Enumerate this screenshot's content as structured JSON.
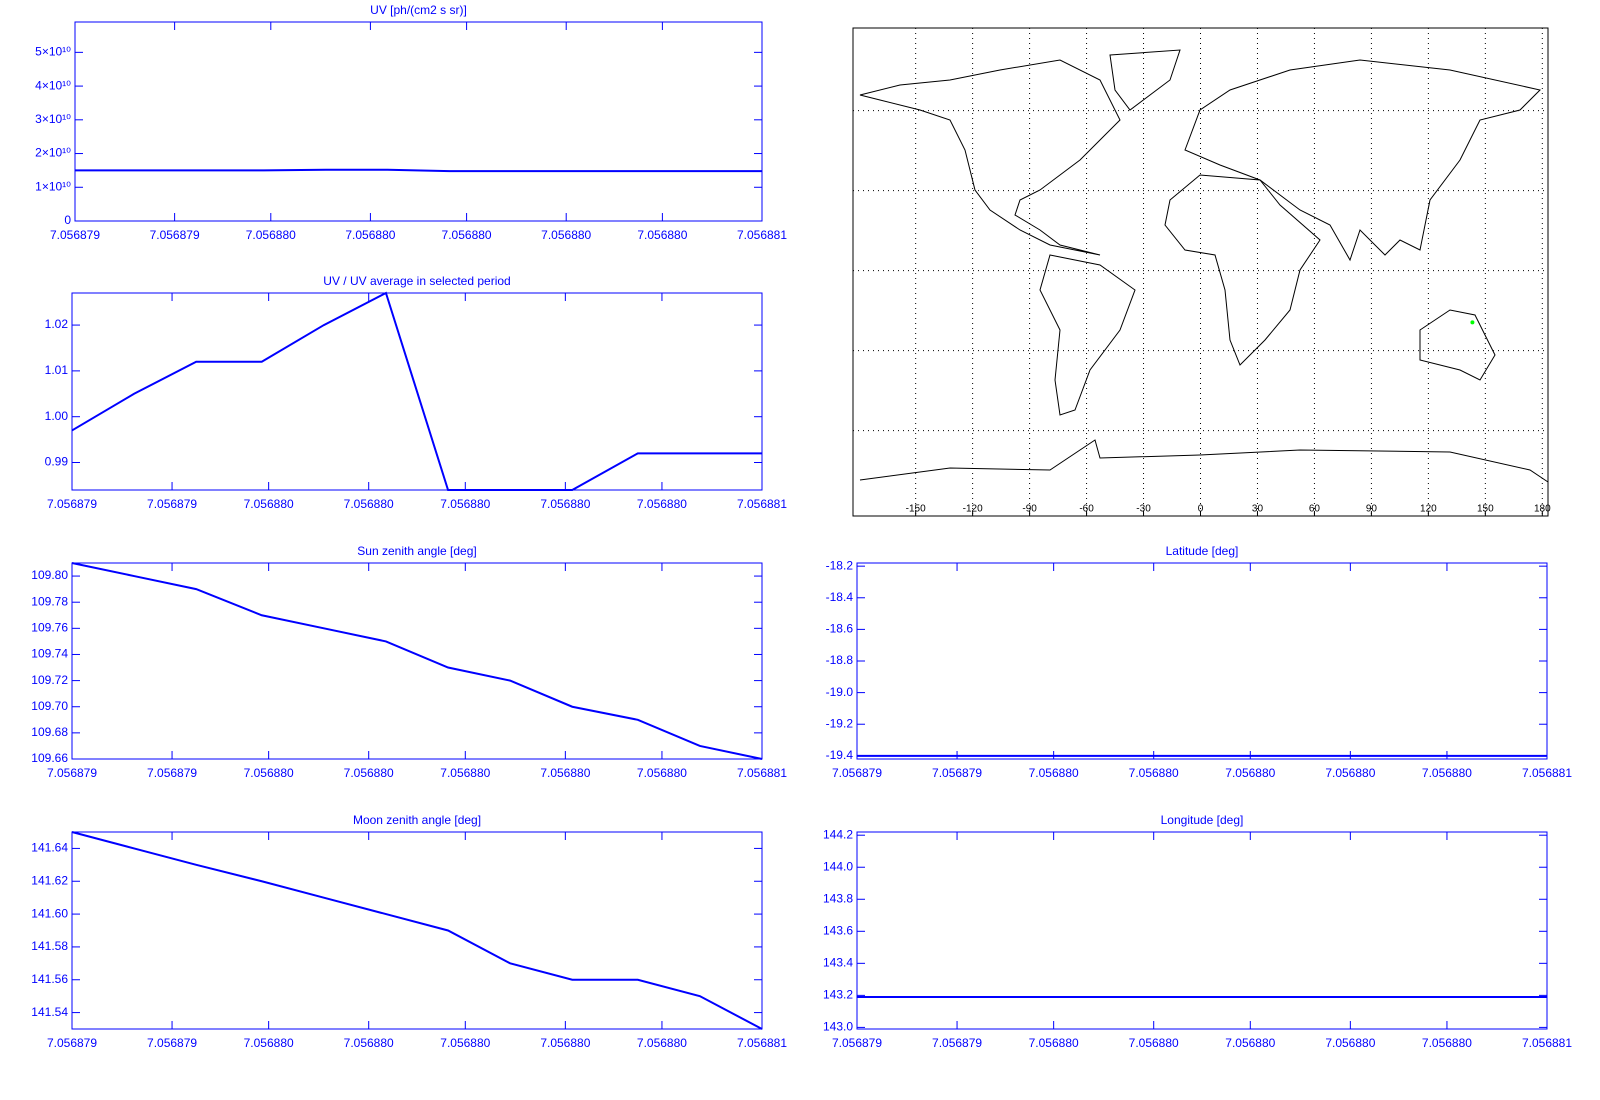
{
  "chart_data": [
    {
      "type": "line",
      "title": "UV [ph/(cm2 s sr)]",
      "color": "#0000ff",
      "x": [
        7.056879,
        7.05687918,
        7.05687936,
        7.05687955,
        7.05687973,
        7.05687991,
        7.05688009,
        7.05688027,
        7.05688045,
        7.05688064,
        7.05688082,
        7.056881
      ],
      "values": [
        15000000000,
        15000000000,
        15000000000,
        15000000000,
        15200000000,
        15200000000,
        14800000000,
        14800000000,
        14800000000,
        14800000000,
        14800000000,
        14800000000
      ],
      "xlim": [
        7.056879,
        7.056881
      ],
      "xticks": [
        {
          "value": 7.056879,
          "label": "7.056879"
        },
        {
          "value": 7.05687929,
          "label": "7.056879"
        },
        {
          "value": 7.05687957,
          "label": "7.056880"
        },
        {
          "value": 7.05687986,
          "label": "7.056880"
        },
        {
          "value": 7.05688014,
          "label": "7.056880"
        },
        {
          "value": 7.05688043,
          "label": "7.056880"
        },
        {
          "value": 7.05688071,
          "label": "7.056880"
        },
        {
          "value": 7.056881,
          "label": "7.056881"
        }
      ],
      "ylim": [
        0,
        59000000000
      ],
      "yticks": [
        0,
        {
          "value": 10000000000,
          "label": "1×10¹⁰"
        },
        {
          "value": 20000000000,
          "label": "2×10¹⁰"
        },
        {
          "value": 30000000000,
          "label": "3×10¹⁰"
        },
        {
          "value": 40000000000,
          "label": "4×10¹⁰"
        },
        {
          "value": 50000000000,
          "label": "5×10¹⁰"
        }
      ]
    },
    {
      "type": "line",
      "title": "UV / UV average in selected period",
      "color": "#0000ff",
      "x": [
        7.056879,
        7.05687918,
        7.05687936,
        7.05687955,
        7.05687973,
        7.05687991,
        7.05688009,
        7.05688027,
        7.05688045,
        7.05688064,
        7.05688082,
        7.056881
      ],
      "values": [
        0.997,
        1.005,
        1.012,
        1.012,
        1.02,
        1.027,
        0.984,
        0.984,
        0.984,
        0.992,
        0.992,
        0.992
      ],
      "xlim": [
        7.056879,
        7.056881
      ],
      "xticks": [
        {
          "value": 7.056879,
          "label": "7.056879"
        },
        {
          "value": 7.05687929,
          "label": "7.056879"
        },
        {
          "value": 7.05687957,
          "label": "7.056880"
        },
        {
          "value": 7.05687986,
          "label": "7.056880"
        },
        {
          "value": 7.05688014,
          "label": "7.056880"
        },
        {
          "value": 7.05688043,
          "label": "7.056880"
        },
        {
          "value": 7.05688071,
          "label": "7.056880"
        },
        {
          "value": 7.056881,
          "label": "7.056881"
        }
      ],
      "ylim": [
        0.984,
        1.027
      ],
      "yticks": [
        0.99,
        {
          "value": 1,
          "label": "1.00"
        },
        1.01,
        1.02
      ]
    },
    {
      "type": "map",
      "color": "#00ff00",
      "grid": true,
      "xlim": [
        -183,
        183
      ],
      "ylim": [
        -92,
        91
      ],
      "xticks": [
        -150,
        -120,
        -90,
        -60,
        -30,
        0,
        30,
        60,
        90,
        120,
        150,
        180
      ],
      "ygrid": [
        -60,
        -30,
        0,
        30,
        60
      ],
      "points": [
        {
          "x": 143.19,
          "y": -19.4
        }
      ]
    },
    {
      "type": "line",
      "title": "Sun zenith angle [deg]",
      "color": "#0000ff",
      "x": [
        7.056879,
        7.05687918,
        7.05687936,
        7.05687955,
        7.05687973,
        7.05687991,
        7.05688009,
        7.05688027,
        7.05688045,
        7.05688064,
        7.05688082,
        7.056881
      ],
      "values": [
        109.81,
        109.8,
        109.79,
        109.77,
        109.76,
        109.75,
        109.73,
        109.72,
        109.7,
        109.69,
        109.67,
        109.66
      ],
      "xlim": [
        7.056879,
        7.056881
      ],
      "xticks": [
        {
          "value": 7.056879,
          "label": "7.056879"
        },
        {
          "value": 7.05687929,
          "label": "7.056879"
        },
        {
          "value": 7.05687957,
          "label": "7.056880"
        },
        {
          "value": 7.05687986,
          "label": "7.056880"
        },
        {
          "value": 7.05688014,
          "label": "7.056880"
        },
        {
          "value": 7.05688043,
          "label": "7.056880"
        },
        {
          "value": 7.05688071,
          "label": "7.056880"
        },
        {
          "value": 7.056881,
          "label": "7.056881"
        }
      ],
      "ylim": [
        109.66,
        109.81
      ],
      "yticks": [
        109.66,
        109.68,
        {
          "value": 109.7,
          "label": "109.70"
        },
        109.72,
        109.74,
        109.76,
        109.78,
        {
          "value": 109.8,
          "label": "109.80"
        }
      ]
    },
    {
      "type": "line",
      "title": "Latitude [deg]",
      "color": "#0000ff",
      "x": [
        7.056879,
        7.05687918,
        7.05687936,
        7.05687955,
        7.05687973,
        7.05687991,
        7.05688009,
        7.05688027,
        7.05688045,
        7.05688064,
        7.05688082,
        7.056881
      ],
      "values": [
        -19.4,
        -19.4,
        -19.4,
        -19.4,
        -19.4,
        -19.4,
        -19.4,
        -19.4,
        -19.4,
        -19.4,
        -19.4,
        -19.4
      ],
      "xlim": [
        7.056879,
        7.056881
      ],
      "xticks": [
        {
          "value": 7.056879,
          "label": "7.056879"
        },
        {
          "value": 7.05687929,
          "label": "7.056879"
        },
        {
          "value": 7.05687957,
          "label": "7.056880"
        },
        {
          "value": 7.05687986,
          "label": "7.056880"
        },
        {
          "value": 7.05688014,
          "label": "7.056880"
        },
        {
          "value": 7.05688043,
          "label": "7.056880"
        },
        {
          "value": 7.05688071,
          "label": "7.056880"
        },
        {
          "value": 7.056881,
          "label": "7.056881"
        }
      ],
      "ylim": [
        -19.42,
        -18.18
      ],
      "yticks": [
        -19.4,
        -19.2,
        {
          "value": -19,
          "label": "-19.0"
        },
        -18.8,
        -18.6,
        -18.4,
        -18.2
      ]
    },
    {
      "type": "line",
      "title": "Moon zenith angle [deg]",
      "color": "#0000ff",
      "x": [
        7.056879,
        7.05687918,
        7.05687936,
        7.05687955,
        7.05687973,
        7.05687991,
        7.05688009,
        7.05688027,
        7.05688045,
        7.05688064,
        7.05688082,
        7.056881
      ],
      "values": [
        141.65,
        141.64,
        141.63,
        141.62,
        141.61,
        141.6,
        141.59,
        141.57,
        141.56,
        141.56,
        141.55,
        141.53
      ],
      "xlim": [
        7.056879,
        7.056881
      ],
      "xticks": [
        {
          "value": 7.056879,
          "label": "7.056879"
        },
        {
          "value": 7.05687929,
          "label": "7.056879"
        },
        {
          "value": 7.05687957,
          "label": "7.056880"
        },
        {
          "value": 7.05687986,
          "label": "7.056880"
        },
        {
          "value": 7.05688014,
          "label": "7.056880"
        },
        {
          "value": 7.05688043,
          "label": "7.056880"
        },
        {
          "value": 7.05688071,
          "label": "7.056880"
        },
        {
          "value": 7.056881,
          "label": "7.056881"
        }
      ],
      "ylim": [
        141.53,
        141.65
      ],
      "yticks": [
        141.54,
        141.56,
        141.58,
        {
          "value": 141.6,
          "label": "141.60"
        },
        141.62,
        141.64
      ]
    },
    {
      "type": "line",
      "title": "Longitude [deg]",
      "color": "#0000ff",
      "x": [
        7.056879,
        7.05687918,
        7.05687936,
        7.05687955,
        7.05687973,
        7.05687991,
        7.05688009,
        7.05688027,
        7.05688045,
        7.05688064,
        7.05688082,
        7.056881
      ],
      "values": [
        143.19,
        143.19,
        143.19,
        143.19,
        143.19,
        143.19,
        143.19,
        143.19,
        143.19,
        143.19,
        143.19,
        143.19
      ],
      "xlim": [
        7.056879,
        7.056881
      ],
      "xticks": [
        {
          "value": 7.056879,
          "label": "7.056879"
        },
        {
          "value": 7.05687929,
          "label": "7.056879"
        },
        {
          "value": 7.05687957,
          "label": "7.056880"
        },
        {
          "value": 7.05687986,
          "label": "7.056880"
        },
        {
          "value": 7.05688014,
          "label": "7.056880"
        },
        {
          "value": 7.05688043,
          "label": "7.056880"
        },
        {
          "value": 7.05688071,
          "label": "7.056880"
        },
        {
          "value": 7.056881,
          "label": "7.056881"
        }
      ],
      "ylim": [
        142.99,
        144.22
      ],
      "yticks": [
        {
          "value": 143,
          "label": "143.0"
        },
        143.2,
        143.4,
        143.6,
        143.8,
        {
          "value": 144,
          "label": "144.0"
        },
        144.2
      ]
    }
  ]
}
